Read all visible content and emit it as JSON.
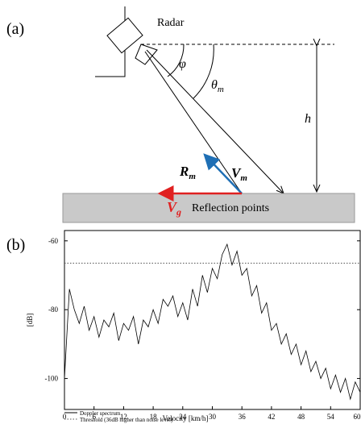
{
  "diagram": {
    "panel_label": "(a)",
    "radar_label": "Radar",
    "phi": "φ",
    "theta": {
      "symbol": "θ",
      "sub": "m"
    },
    "h": "h",
    "R": {
      "symbol": "R",
      "sub": "m"
    },
    "V": {
      "symbol": "V",
      "sub": "m"
    },
    "Vg": {
      "symbol": "V",
      "sub": "g"
    },
    "ground_label": "Reflection points"
  },
  "chart_data": {
    "type": "line",
    "panel_label": "(b)",
    "x_label": "Velocity [km/h]",
    "y_label": "[dB]",
    "x": [
      0,
      1,
      2,
      3,
      4,
      5,
      6,
      7,
      8,
      9,
      10,
      11,
      12,
      13,
      14,
      15,
      16,
      17,
      18,
      19,
      20,
      21,
      22,
      23,
      24,
      25,
      26,
      27,
      28,
      29,
      30,
      31,
      32,
      33,
      34,
      35,
      36,
      37,
      38,
      39,
      40,
      41,
      42,
      43,
      44,
      45,
      46,
      47,
      48,
      49,
      50,
      51,
      52,
      53,
      54,
      55,
      56,
      57,
      58,
      59,
      60
    ],
    "series": [
      {
        "name": "Doppler spectrum",
        "color": "#000000",
        "values": [
          -100,
          -74,
          -80,
          -84,
          -79,
          -86,
          -82,
          -88,
          -83,
          -85,
          -81,
          -89,
          -84,
          -86,
          -82,
          -90,
          -83,
          -85,
          -80,
          -84,
          -77,
          -79,
          -76,
          -82,
          -78,
          -83,
          -74,
          -79,
          -70,
          -75,
          -68,
          -71,
          -64,
          -61,
          -67,
          -63,
          -70,
          -68,
          -76,
          -73,
          -81,
          -78,
          -86,
          -84,
          -90,
          -87,
          -93,
          -90,
          -96,
          -92,
          -98,
          -95,
          -100,
          -97,
          -103,
          -99,
          -104,
          -100,
          -106,
          -101,
          -104
        ]
      }
    ],
    "threshold": {
      "name": "Threshold (36dB higher than noise level)",
      "value": -66.5,
      "color": "#555555"
    },
    "xlim": [
      0,
      60
    ],
    "xticks": [
      0,
      6,
      12,
      18,
      24,
      30,
      36,
      42,
      48,
      54,
      60
    ],
    "ylim": [
      -109,
      -57
    ],
    "yticks": [
      -60,
      -80,
      -100
    ]
  }
}
